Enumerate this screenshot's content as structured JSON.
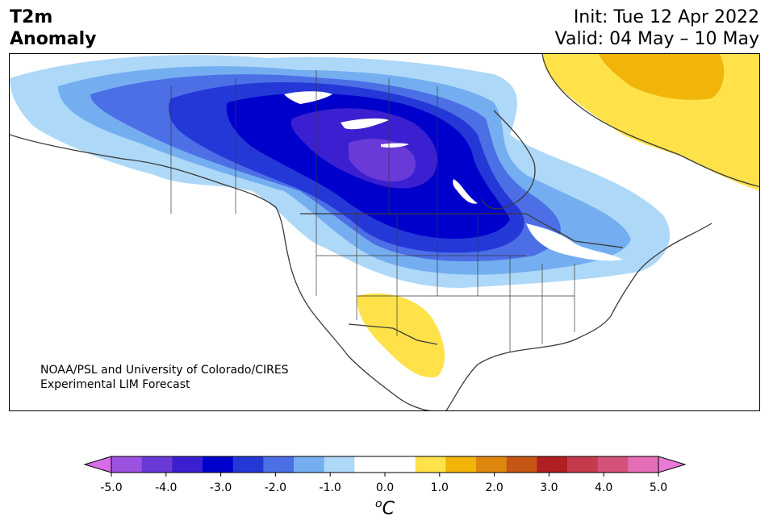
{
  "header": {
    "variable": "T2m",
    "quantity": "Anomaly",
    "init": "Init: Tue 12 Apr 2022",
    "valid": "Valid: 04 May – 10 May"
  },
  "credit": {
    "line1": "NOAA/PSL and University of Colorado/CIRES",
    "line2": "Experimental LIM Forecast"
  },
  "colorbar": {
    "unit": "oC",
    "ticks": [
      "-5.0",
      "-4.0",
      "-3.0",
      "-2.0",
      "-1.0",
      "0.0",
      "1.0",
      "2.0",
      "3.0",
      "4.0",
      "5.0"
    ],
    "colors": [
      "#d56de8",
      "#9b52e0",
      "#6a3ad8",
      "#3a20d0",
      "#0000cc",
      "#2438d8",
      "#4c6fe6",
      "#74aef0",
      "#aed8f8",
      "#ffffff",
      "#ffffff",
      "#ffe24a",
      "#f1b50a",
      "#de870f",
      "#c55614",
      "#b01f21",
      "#c53a4c",
      "#d4527a",
      "#e46fb6",
      "#e97bd7"
    ]
  },
  "map": {
    "region": "North America",
    "field": "2m temperature anomaly",
    "features": [
      "cold anomaly centered over central Canada and northern Great Plains",
      "warm anomaly over Greenland",
      "warm anomaly over southwestern US / northern Mexico"
    ]
  }
}
